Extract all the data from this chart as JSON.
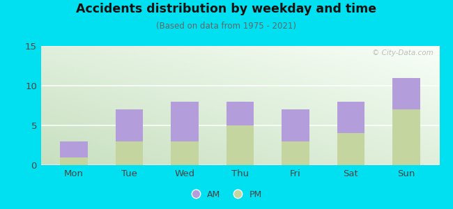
{
  "categories": [
    "Mon",
    "Tue",
    "Wed",
    "Thu",
    "Fri",
    "Sat",
    "Sun"
  ],
  "am_values": [
    2,
    4,
    5,
    3,
    4,
    4,
    4
  ],
  "pm_values": [
    1,
    3,
    3,
    5,
    3,
    4,
    7
  ],
  "am_color": "#b39ddb",
  "pm_color": "#c5d5a0",
  "title": "Accidents distribution by weekday and time",
  "subtitle": "(Based on data from 1975 - 2021)",
  "ylim": [
    0,
    15
  ],
  "yticks": [
    0,
    5,
    10,
    15
  ],
  "background_outer": "#00e0f0",
  "watermark": "© City-Data.com",
  "legend_labels": [
    "AM",
    "PM"
  ]
}
